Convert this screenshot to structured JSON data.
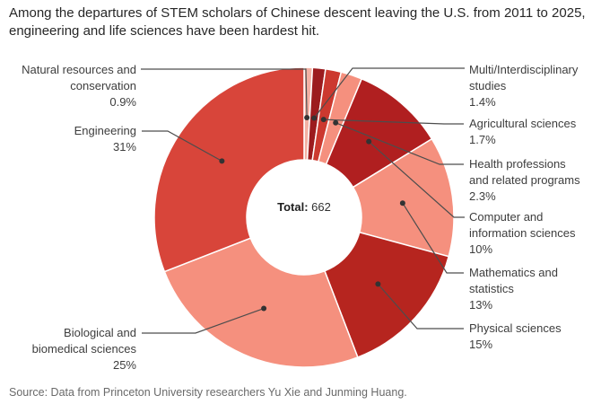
{
  "title": "Among the departures of STEM scholars of Chinese descent leaving the U.S. from 2011 to 2025, engineering and life sciences have been hardest hit.",
  "source": "Source: Data from Princeton University researchers Yu Xie and Junming Huang.",
  "center": {
    "label": "Total:",
    "value": "662"
  },
  "callouts": {
    "natural": {
      "line1": "Natural resources and",
      "line2": "conservation",
      "pct": "0.9%"
    },
    "engineering": {
      "line1": "Engineering",
      "pct": "31%"
    },
    "biological": {
      "line1": "Biological and",
      "line2": "biomedical sciences",
      "pct": "25%"
    },
    "multi": {
      "line1": "Multi/Interdisciplinary",
      "line2": "studies",
      "pct": "1.4%"
    },
    "agricultural": {
      "line1": "Agricultural sciences",
      "pct": "1.7%"
    },
    "health": {
      "line1": "Health professions",
      "line2": "and related programs",
      "pct": "2.3%"
    },
    "computer": {
      "line1": "Computer and",
      "line2": "information sciences",
      "pct": "10%"
    },
    "mathematics": {
      "line1": "Mathematics and",
      "line2": "statistics",
      "pct": "13%"
    },
    "physical": {
      "line1": "Physical sciences",
      "pct": "15%"
    }
  },
  "chart_data": {
    "type": "pie",
    "subtype": "donut",
    "title": "Among the departures of STEM scholars of Chinese descent leaving the U.S. from 2011 to 2025, engineering and life sciences have been hardest hit.",
    "total_label": "Total:",
    "total_value": 662,
    "unit": "percent of departures",
    "start_angle_deg": 0,
    "direction": "clockwise",
    "legend_position": "callout-labels",
    "slices": [
      {
        "label": "Natural resources and conservation",
        "value": 0.9,
        "pct_label": "0.9%",
        "color": "#f3b1a4"
      },
      {
        "label": "Multi/Interdisciplinary studies",
        "value": 1.4,
        "pct_label": "1.4%",
        "color": "#9c1b1e"
      },
      {
        "label": "Agricultural sciences",
        "value": 1.7,
        "pct_label": "1.7%",
        "color": "#cc392f"
      },
      {
        "label": "Health professions and related programs",
        "value": 2.3,
        "pct_label": "2.3%",
        "color": "#f5907e"
      },
      {
        "label": "Computer and information sciences",
        "value": 10,
        "pct_label": "10%",
        "color": "#b01f20"
      },
      {
        "label": "Mathematics and statistics",
        "value": 13,
        "pct_label": "13%",
        "color": "#f5907e"
      },
      {
        "label": "Physical sciences",
        "value": 15,
        "pct_label": "15%",
        "color": "#b6251f"
      },
      {
        "label": "Biological and biomedical sciences",
        "value": 25,
        "pct_label": "25%",
        "color": "#f5907e"
      },
      {
        "label": "Engineering",
        "value": 31,
        "pct_label": "31%",
        "color": "#d8453a"
      }
    ],
    "leader_line_color": "#4d4d4d",
    "slice_border_color": "#ffffff"
  }
}
